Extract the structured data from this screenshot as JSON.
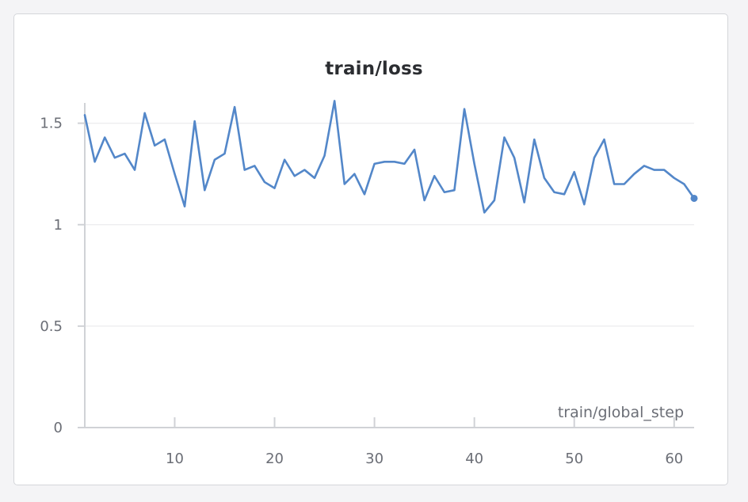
{
  "chart_data": {
    "type": "line",
    "title": "train/loss",
    "xlabel": "train/global_step",
    "ylabel": "",
    "xlim": [
      1,
      62
    ],
    "ylim": [
      0,
      1.6
    ],
    "x_ticks": [
      10,
      20,
      30,
      40,
      50,
      60
    ],
    "y_ticks": [
      0,
      0.5,
      1,
      1.5
    ],
    "y_tick_labels": [
      "0",
      "0.5",
      "1",
      "1.5"
    ],
    "grid": true,
    "line_color": "#5387c9",
    "series": [
      {
        "x": [
          1,
          2,
          3,
          4,
          5,
          6,
          7,
          8,
          9,
          10,
          11,
          12,
          13,
          14,
          15,
          16,
          17,
          18,
          19,
          20,
          21,
          22,
          23,
          24,
          25,
          26,
          27,
          28,
          29,
          30,
          31,
          32,
          33,
          34,
          35,
          36,
          37,
          38,
          39,
          40,
          41,
          42,
          43,
          44,
          45,
          46,
          47,
          48,
          49,
          50,
          51,
          52,
          53,
          54,
          55,
          56,
          57,
          58,
          59,
          60,
          61,
          62
        ],
        "values": [
          1.54,
          1.31,
          1.43,
          1.33,
          1.35,
          1.27,
          1.55,
          1.39,
          1.42,
          1.25,
          1.09,
          1.51,
          1.17,
          1.32,
          1.35,
          1.58,
          1.27,
          1.29,
          1.21,
          1.18,
          1.32,
          1.24,
          1.27,
          1.23,
          1.34,
          1.61,
          1.2,
          1.25,
          1.15,
          1.3,
          1.31,
          1.31,
          1.3,
          1.37,
          1.12,
          1.24,
          1.16,
          1.17,
          1.57,
          1.3,
          1.06,
          1.12,
          1.43,
          1.33,
          1.11,
          1.42,
          1.23,
          1.16,
          1.15,
          1.26,
          1.1,
          1.33,
          1.42,
          1.2,
          1.2,
          1.25,
          1.29,
          1.27,
          1.27,
          1.23,
          1.2,
          1.13
        ]
      }
    ]
  }
}
